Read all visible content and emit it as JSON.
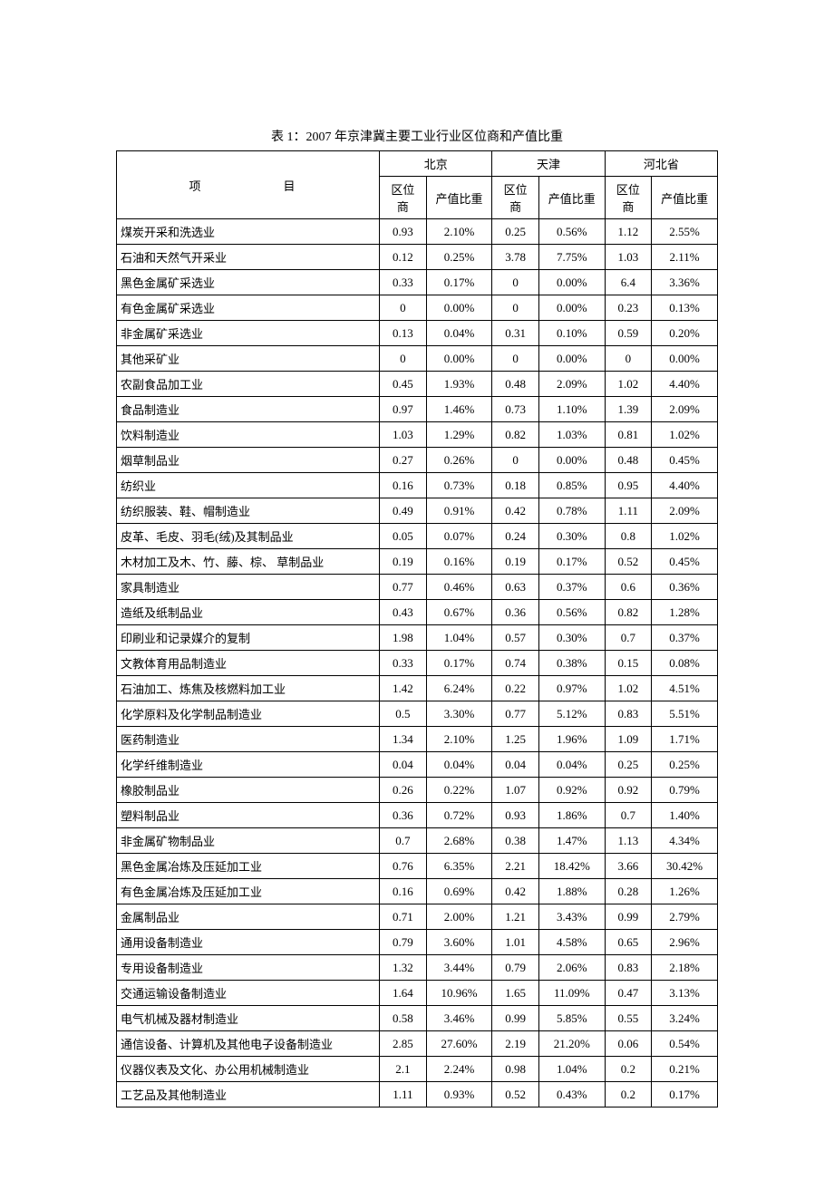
{
  "title": "表 1：2007 年京津冀主要工业行业区位商和产值比重",
  "headers": {
    "item": "项　　　目",
    "regions": [
      "北京",
      "天津",
      "河北省"
    ],
    "sub": [
      "区位商",
      "产值比重"
    ]
  },
  "table": {
    "type": "table",
    "background_color": "#ffffff",
    "border_color": "#000000",
    "text_color": "#000000",
    "font_size": 13,
    "column_alignment": [
      "left",
      "center",
      "center",
      "center",
      "center",
      "center",
      "center"
    ]
  },
  "rows": [
    {
      "label": "煤炭开采和洗选业",
      "d": [
        "0.93",
        "2.10%",
        "0.25",
        "0.56%",
        "1.12",
        "2.55%"
      ]
    },
    {
      "label": "石油和天然气开采业",
      "d": [
        "0.12",
        "0.25%",
        "3.78",
        "7.75%",
        "1.03",
        "2.11%"
      ]
    },
    {
      "label": "黑色金属矿采选业",
      "d": [
        "0.33",
        "0.17%",
        "0",
        "0.00%",
        "6.4",
        "3.36%"
      ]
    },
    {
      "label": "有色金属矿采选业",
      "d": [
        "0",
        "0.00%",
        "0",
        "0.00%",
        "0.23",
        "0.13%"
      ]
    },
    {
      "label": "非金属矿采选业",
      "d": [
        "0.13",
        "0.04%",
        "0.31",
        "0.10%",
        "0.59",
        "0.20%"
      ]
    },
    {
      "label": "其他采矿业",
      "d": [
        "0",
        "0.00%",
        "0",
        "0.00%",
        "0",
        "0.00%"
      ]
    },
    {
      "label": "农副食品加工业",
      "d": [
        "0.45",
        "1.93%",
        "0.48",
        "2.09%",
        "1.02",
        "4.40%"
      ]
    },
    {
      "label": "食品制造业",
      "d": [
        "0.97",
        "1.46%",
        "0.73",
        "1.10%",
        "1.39",
        "2.09%"
      ]
    },
    {
      "label": "饮料制造业",
      "d": [
        "1.03",
        "1.29%",
        "0.82",
        "1.03%",
        "0.81",
        "1.02%"
      ]
    },
    {
      "label": "烟草制品业",
      "d": [
        "0.27",
        "0.26%",
        "0",
        "0.00%",
        "0.48",
        "0.45%"
      ]
    },
    {
      "label": "纺织业",
      "d": [
        "0.16",
        "0.73%",
        "0.18",
        "0.85%",
        "0.95",
        "4.40%"
      ]
    },
    {
      "label": "纺织服装、鞋、帽制造业",
      "d": [
        "0.49",
        "0.91%",
        "0.42",
        "0.78%",
        "1.11",
        "2.09%"
      ]
    },
    {
      "label": "皮革、毛皮、羽毛(绒)及其制品业",
      "d": [
        "0.05",
        "0.07%",
        "0.24",
        "0.30%",
        "0.8",
        "1.02%"
      ]
    },
    {
      "label": "木材加工及木、竹、藤、棕、 草制品业",
      "d": [
        "0.19",
        "0.16%",
        "0.19",
        "0.17%",
        "0.52",
        "0.45%"
      ]
    },
    {
      "label": "家具制造业",
      "d": [
        "0.77",
        "0.46%",
        "0.63",
        "0.37%",
        "0.6",
        "0.36%"
      ]
    },
    {
      "label": "造纸及纸制品业",
      "d": [
        "0.43",
        "0.67%",
        "0.36",
        "0.56%",
        "0.82",
        "1.28%"
      ]
    },
    {
      "label": "印刷业和记录媒介的复制",
      "d": [
        "1.98",
        "1.04%",
        "0.57",
        "0.30%",
        "0.7",
        "0.37%"
      ]
    },
    {
      "label": "文教体育用品制造业",
      "d": [
        "0.33",
        "0.17%",
        "0.74",
        "0.38%",
        "0.15",
        "0.08%"
      ]
    },
    {
      "label": "石油加工、炼焦及核燃料加工业",
      "d": [
        "1.42",
        "6.24%",
        "0.22",
        "0.97%",
        "1.02",
        "4.51%"
      ]
    },
    {
      "label": "化学原料及化学制品制造业",
      "d": [
        "0.5",
        "3.30%",
        "0.77",
        "5.12%",
        "0.83",
        "5.51%"
      ]
    },
    {
      "label": "医药制造业",
      "d": [
        "1.34",
        "2.10%",
        "1.25",
        "1.96%",
        "1.09",
        "1.71%"
      ]
    },
    {
      "label": "化学纤维制造业",
      "d": [
        "0.04",
        "0.04%",
        "0.04",
        "0.04%",
        "0.25",
        "0.25%"
      ]
    },
    {
      "label": "橡胶制品业",
      "d": [
        "0.26",
        "0.22%",
        "1.07",
        "0.92%",
        "0.92",
        "0.79%"
      ]
    },
    {
      "label": "塑料制品业",
      "d": [
        "0.36",
        "0.72%",
        "0.93",
        "1.86%",
        "0.7",
        "1.40%"
      ]
    },
    {
      "label": "非金属矿物制品业",
      "d": [
        "0.7",
        "2.68%",
        "0.38",
        "1.47%",
        "1.13",
        "4.34%"
      ]
    },
    {
      "label": "黑色金属冶炼及压延加工业",
      "d": [
        "0.76",
        "6.35%",
        "2.21",
        "18.42%",
        "3.66",
        "30.42%"
      ]
    },
    {
      "label": "有色金属冶炼及压延加工业",
      "d": [
        "0.16",
        "0.69%",
        "0.42",
        "1.88%",
        "0.28",
        "1.26%"
      ]
    },
    {
      "label": "金属制品业",
      "d": [
        "0.71",
        "2.00%",
        "1.21",
        "3.43%",
        "0.99",
        "2.79%"
      ]
    },
    {
      "label": "通用设备制造业",
      "d": [
        "0.79",
        "3.60%",
        "1.01",
        "4.58%",
        "0.65",
        "2.96%"
      ]
    },
    {
      "label": "专用设备制造业",
      "d": [
        "1.32",
        "3.44%",
        "0.79",
        "2.06%",
        "0.83",
        "2.18%"
      ]
    },
    {
      "label": "交通运输设备制造业",
      "d": [
        "1.64",
        "10.96%",
        "1.65",
        "11.09%",
        "0.47",
        "3.13%"
      ]
    },
    {
      "label": "电气机械及器材制造业",
      "d": [
        "0.58",
        "3.46%",
        "0.99",
        "5.85%",
        "0.55",
        "3.24%"
      ]
    },
    {
      "label": "通信设备、计算机及其他电子设备制造业",
      "d": [
        "2.85",
        "27.60%",
        "2.19",
        "21.20%",
        "0.06",
        "0.54%"
      ]
    },
    {
      "label": "仪器仪表及文化、办公用机械制造业",
      "d": [
        "2.1",
        "2.24%",
        "0.98",
        "1.04%",
        "0.2",
        "0.21%"
      ]
    },
    {
      "label": "工艺品及其他制造业",
      "d": [
        "1.11",
        "0.93%",
        "0.52",
        "0.43%",
        "0.2",
        "0.17%"
      ]
    }
  ]
}
